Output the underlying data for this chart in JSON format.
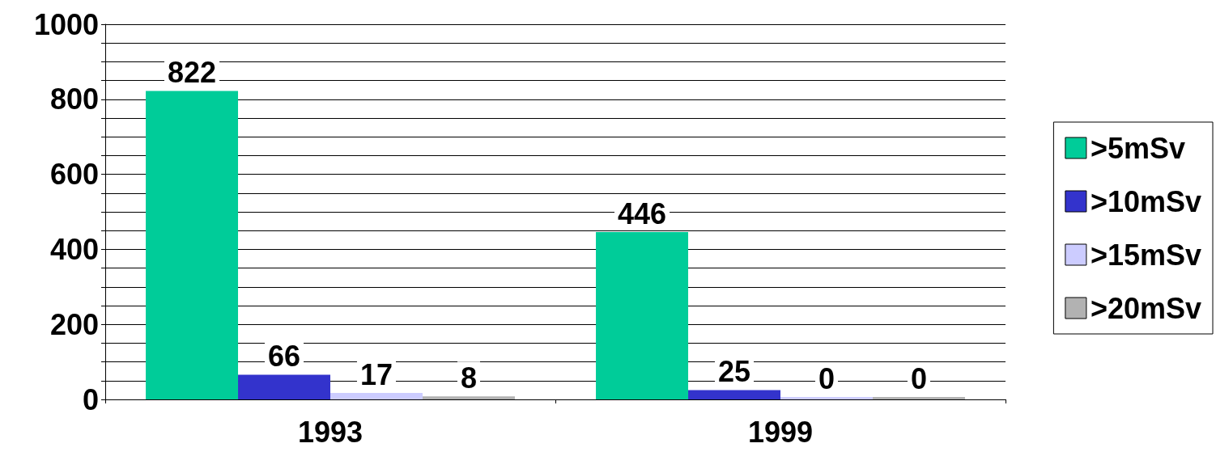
{
  "chart_data": {
    "type": "bar",
    "categories": [
      "1993",
      "1999"
    ],
    "series": [
      {
        "name": ">5mSv",
        "color": "#00cc99",
        "values": [
          822,
          446
        ]
      },
      {
        "name": ">10mSv",
        "color": "#3333cc",
        "values": [
          66,
          25
        ]
      },
      {
        "name": ">15mSv",
        "color": "#ccccff",
        "values": [
          17,
          0
        ]
      },
      {
        "name": ">20mSv",
        "color": "#b2b2b2",
        "values": [
          8,
          0
        ]
      }
    ],
    "ylim": [
      0,
      1000
    ],
    "yticks": [
      0,
      {
        "value": 50,
        "label": null
      },
      200,
      {
        "value": 100,
        "label": null
      },
      {
        "value": 150,
        "label": null
      },
      {
        "value": 250,
        "label": null
      },
      {
        "value": 300,
        "label": null
      },
      {
        "value": 350,
        "label": null
      },
      400,
      {
        "value": 450,
        "label": null
      },
      {
        "value": 500,
        "label": null
      },
      {
        "value": 550,
        "label": null
      },
      600,
      {
        "value": 650,
        "label": null
      },
      {
        "value": 700,
        "label": null
      },
      {
        "value": 750,
        "label": null
      },
      800,
      {
        "value": 850,
        "label": null
      },
      {
        "value": 900,
        "label": null
      },
      {
        "value": 950,
        "label": null
      },
      1000
    ],
    "grid": "y",
    "legend": "right",
    "data_labels": true
  }
}
